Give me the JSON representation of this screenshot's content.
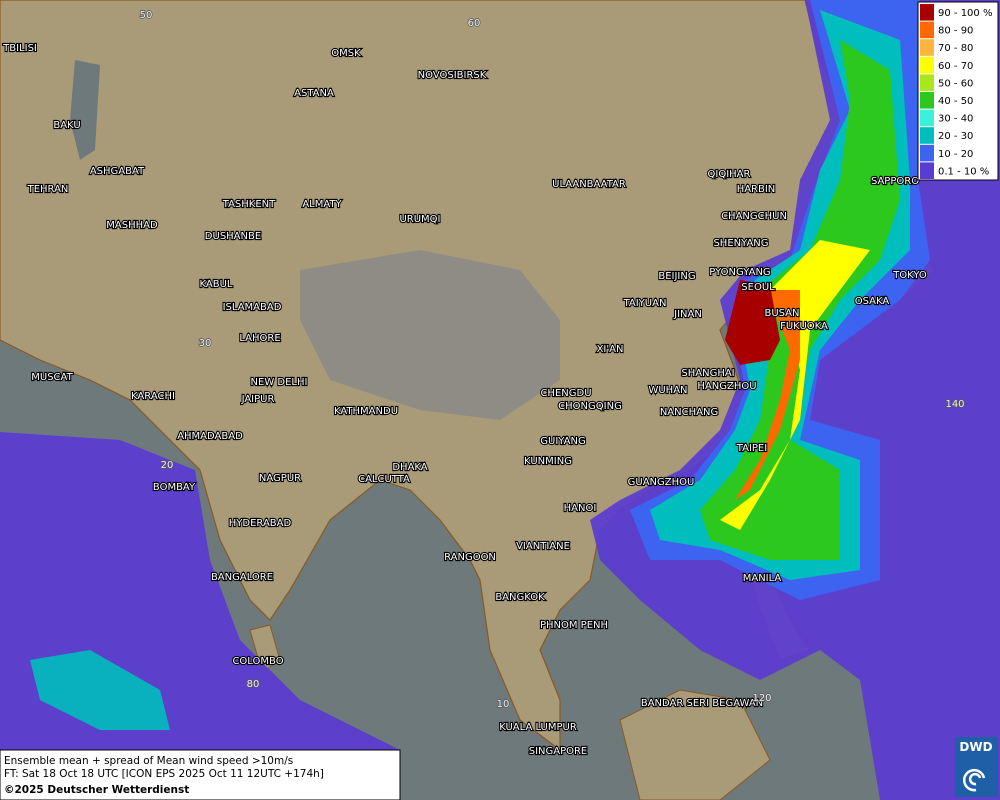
{
  "legend": {
    "items": [
      {
        "label": "90 - 100 %",
        "color": "#a80000"
      },
      {
        "label": "80 - 90",
        "color": "#ff6a00"
      },
      {
        "label": "70 - 80",
        "color": "#ffb43c"
      },
      {
        "label": "60 - 70",
        "color": "#ffff00"
      },
      {
        "label": "50 - 60",
        "color": "#a8e61e"
      },
      {
        "label": "40 - 50",
        "color": "#2dc81e"
      },
      {
        "label": "30 - 40",
        "color": "#3cf0dc"
      },
      {
        "label": "20 - 30",
        "color": "#00bebe"
      },
      {
        "label": "10 - 20",
        "color": "#3c64f0"
      },
      {
        "label": "0.1 - 10 %",
        "color": "#5a3cd2"
      }
    ]
  },
  "cities": [
    "OMSK",
    "NOVOSIBIRSK",
    "ASTANA",
    "TBILISI",
    "BAKU",
    "TEHRAN",
    "ASHGABAT",
    "MASHHAD",
    "TASHKENT",
    "ALMATY",
    "URUMQI",
    "DUSHANBE",
    "ULAANBAATAR",
    "QIQIHAR",
    "HARBIN",
    "CHANGCHUN",
    "SHENYANG",
    "BEIJING",
    "PYONGYANG",
    "SEOUL",
    "TAIYUAN",
    "JINAN",
    "BUSAN",
    "FUKUOKA",
    "OSAKA",
    "TOKYO",
    "SAPPORO",
    "KABUL",
    "ISLAMABAD",
    "LAHORE",
    "XI'AN",
    "MUSCAT",
    "NEW DELHI",
    "KARACHI",
    "JAIPUR",
    "KATHMANDU",
    "CHENGDU",
    "CHONGQING",
    "SHANGHAI",
    "HANGZHOU",
    "WUHAN",
    "NANCHANG",
    "AHMADABAD",
    "GUIYANG",
    "TAIPEI",
    "KUNMING",
    "DHAKA",
    "NAGPUR",
    "CALCUTTA",
    "GUANGZHOU",
    "BOMBAY",
    "HANOI",
    "HYDERABAD",
    "RANGOON",
    "VIANTIANE",
    "MANILA",
    "BANGALORE",
    "BANGKOK",
    "PHNOM PENH",
    "COLOMBO",
    "BANDAR SERI BEGAWAN",
    "KUALA LUMPUR",
    "SINGAPORE"
  ],
  "grid_labels": [
    "50",
    "60",
    "30",
    "20",
    "140",
    "80",
    "10",
    "120"
  ],
  "caption": {
    "lines": [
      "Ensemble mean + spread of Mean wind speed >10m/s",
      "FT: Sat 18 Oct 18 UTC [ICON EPS 2025 Oct 11 12UTC +174h]",
      "©2025 Deutscher Wetterdienst"
    ]
  },
  "logo": "DWD"
}
